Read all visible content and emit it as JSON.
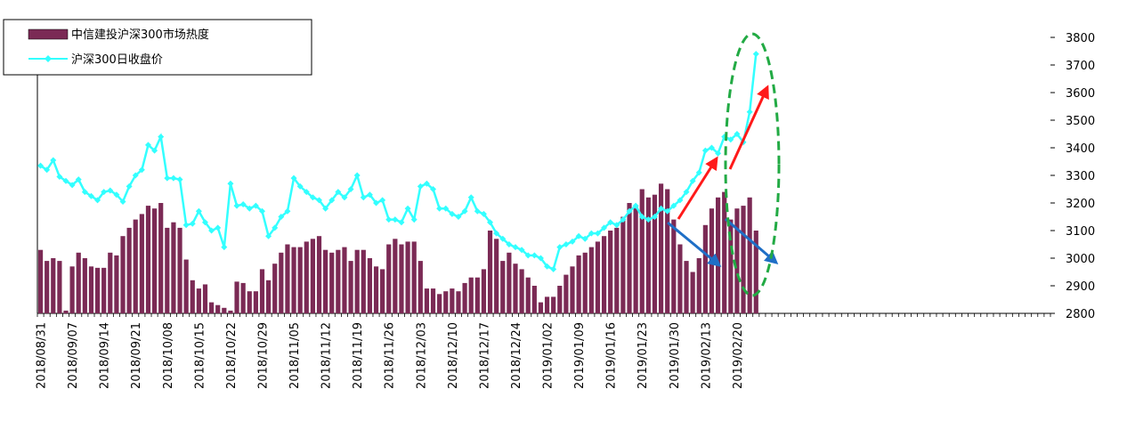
{
  "chart_data": {
    "type": "bar",
    "categories": [
      "2018/08/31",
      null,
      null,
      null,
      null,
      "2018/09/07",
      null,
      null,
      null,
      null,
      "2018/09/14",
      null,
      null,
      null,
      null,
      "2018/09/21",
      null,
      null,
      null,
      null,
      "2018/10/08",
      null,
      null,
      null,
      null,
      "2018/10/15",
      null,
      null,
      null,
      null,
      "2018/10/22",
      null,
      null,
      null,
      null,
      "2018/10/29",
      null,
      null,
      null,
      null,
      "2018/11/05",
      null,
      null,
      null,
      null,
      "2018/11/12",
      null,
      null,
      null,
      null,
      "2018/11/19",
      null,
      null,
      null,
      null,
      "2018/11/26",
      null,
      null,
      null,
      null,
      "2018/12/03",
      null,
      null,
      null,
      null,
      "2018/12/10",
      null,
      null,
      null,
      null,
      "2018/12/17",
      null,
      null,
      null,
      null,
      "2018/12/24",
      null,
      null,
      null,
      null,
      "2019/01/02",
      null,
      null,
      null,
      null,
      "2019/01/09",
      null,
      null,
      null,
      null,
      "2019/01/16",
      null,
      null,
      null,
      null,
      "2019/01/23",
      null,
      null,
      null,
      null,
      "2019/01/30",
      null,
      null,
      null,
      null,
      "2019/02/13",
      null,
      null,
      null,
      null,
      "2019/02/20",
      null,
      null,
      null,
      null,
      null,
      null,
      null,
      null,
      null,
      null,
      null,
      null,
      null,
      null,
      null,
      null,
      null,
      null,
      null,
      null,
      null,
      null,
      null,
      null,
      null,
      null,
      null,
      null,
      null,
      null,
      null,
      null,
      null,
      null,
      null,
      null,
      null,
      null,
      null,
      null,
      null,
      null,
      null,
      null,
      null,
      null,
      null,
      null,
      null
    ],
    "series": [
      {
        "name": "中信建投沪深300市场热度",
        "type": "bar",
        "axis": "y2",
        "color": "#7b2a55",
        "values": [
          3030,
          2990,
          3000,
          2990,
          2810,
          2970,
          3020,
          3000,
          2970,
          2965,
          2965,
          3020,
          3010,
          3080,
          3110,
          3140,
          3160,
          3190,
          3180,
          3200,
          3110,
          3130,
          3110,
          2995,
          2920,
          2890,
          2905,
          2840,
          2830,
          2820,
          2810,
          2915,
          2910,
          2880,
          2880,
          2960,
          2920,
          2980,
          3020,
          3050,
          3040,
          3040,
          3060,
          3070,
          3080,
          3030,
          3020,
          3030,
          3040,
          2990,
          3030,
          3030,
          3000,
          2970,
          2960,
          3050,
          3070,
          3050,
          3060,
          3060,
          2990,
          2890,
          2890,
          2870,
          2880,
          2890,
          2880,
          2910,
          2930,
          2930,
          2960,
          3100,
          3070,
          2990,
          3020,
          2980,
          2960,
          2930,
          2900,
          2840,
          2860,
          2860,
          2900,
          2940,
          2970,
          3010,
          3020,
          3040,
          3060,
          3080,
          3100,
          3110,
          3150,
          3200,
          3190,
          3250,
          3220,
          3230,
          3270,
          3250,
          3140,
          3050,
          2990,
          2950,
          3000,
          3120,
          3180,
          3220,
          3240,
          3140,
          3180,
          3190,
          3220,
          3100,
          null,
          null,
          null,
          null,
          null,
          null,
          null,
          null,
          null,
          null,
          null,
          null,
          null,
          null,
          null,
          null,
          null,
          null,
          null,
          null,
          null,
          null,
          null,
          null,
          null,
          null,
          null,
          null,
          null,
          null,
          null,
          null,
          null,
          null,
          null,
          null,
          null,
          null,
          null,
          null,
          null,
          null,
          null,
          null,
          null,
          null
        ]
      },
      {
        "name": "沪深300日收盘价",
        "type": "line",
        "axis": "y2",
        "color": "#33ffff",
        "values": [
          3335,
          3320,
          3355,
          3295,
          3280,
          3265,
          3285,
          3240,
          3225,
          3210,
          3240,
          3245,
          3230,
          3205,
          3260,
          3300,
          3320,
          3410,
          3390,
          3440,
          3290,
          3290,
          3285,
          3120,
          3125,
          3170,
          3130,
          3100,
          3110,
          3040,
          3270,
          3190,
          3195,
          3180,
          3190,
          3170,
          3080,
          3110,
          3150,
          3170,
          3290,
          3260,
          3240,
          3220,
          3210,
          3180,
          3210,
          3240,
          3220,
          3250,
          3300,
          3220,
          3230,
          3200,
          3210,
          3140,
          3140,
          3130,
          3180,
          3140,
          3260,
          3270,
          3250,
          3180,
          3180,
          3160,
          3150,
          3170,
          3220,
          3170,
          3160,
          3130,
          3090,
          3070,
          3050,
          3040,
          3030,
          3010,
          3010,
          3000,
          2970,
          2960,
          3040,
          3050,
          3060,
          3080,
          3070,
          3090,
          3090,
          3110,
          3130,
          3120,
          3140,
          3170,
          3190,
          3150,
          3140,
          3150,
          3180,
          3170,
          3190,
          3210,
          3240,
          3280,
          3310,
          3390,
          3400,
          3380,
          3440,
          3430,
          3450,
          3420,
          3530,
          3740,
          null,
          null,
          null,
          null,
          null,
          null,
          null,
          null,
          null,
          null,
          null,
          null,
          null,
          null,
          null,
          null,
          null,
          null,
          null,
          null,
          null,
          null,
          null,
          null,
          null,
          null,
          null,
          null,
          null,
          null,
          null,
          null,
          null,
          null,
          null,
          null,
          null,
          null,
          null,
          null,
          null,
          null,
          null,
          null,
          null,
          null
        ]
      }
    ],
    "y2lim": [
      2800,
      3800
    ],
    "y2ticks": [
      2800,
      2900,
      3000,
      3100,
      3200,
      3300,
      3400,
      3500,
      3600,
      3700,
      3800
    ],
    "legend": "top-left"
  }
}
